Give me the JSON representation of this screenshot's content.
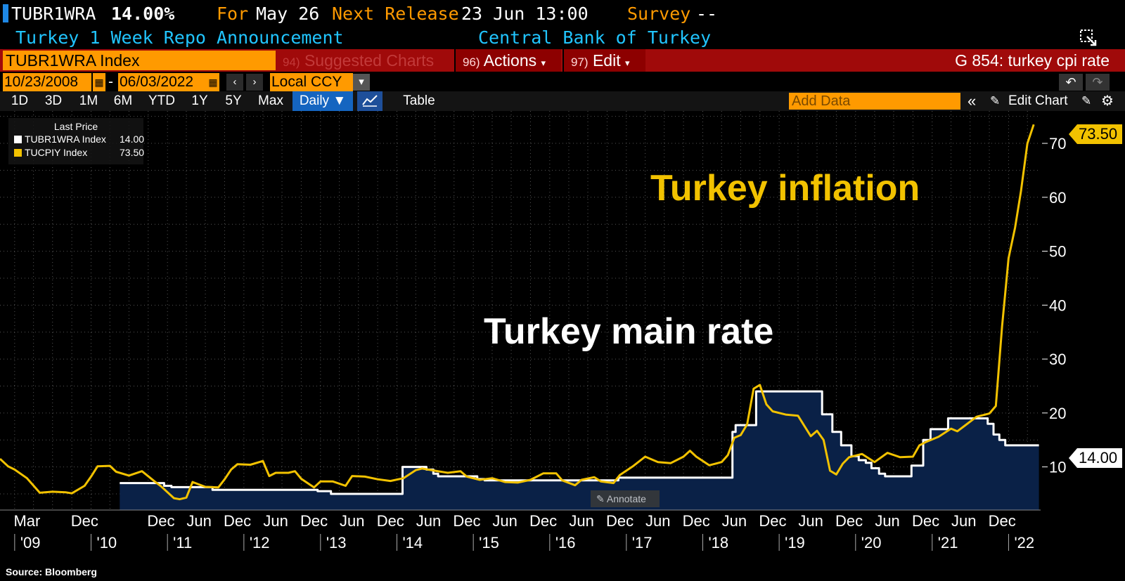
{
  "header": {
    "ticker": "TUBR1WRA",
    "value": "14.00%",
    "for_label": "For",
    "for_date": "May 26",
    "next_release_label": "Next Release",
    "next_release_value": "23 Jun 13:00",
    "survey_label": "Survey",
    "survey_value": "--",
    "description": "Turkey 1 Week Repo Announcement",
    "source_org": "Central Bank of Turkey"
  },
  "command_bar": {
    "security": "TUBR1WRA Index",
    "suggested_num": "94)",
    "suggested_label": "Suggested Charts",
    "actions_num": "96)",
    "actions_label": "Actions",
    "edit_num": "97)",
    "edit_label": "Edit",
    "page_title": "G 854: turkey cpi rate"
  },
  "date_range": {
    "start": "10/23/2008",
    "separator": "-",
    "end": "06/03/2022",
    "currency": "Local CCY"
  },
  "toolbar": {
    "ranges": [
      "1D",
      "3D",
      "1M",
      "6M",
      "YTD",
      "1Y",
      "5Y",
      "Max"
    ],
    "frequency": "Daily",
    "table_label": "Table",
    "add_data_placeholder": "Add Data",
    "edit_chart_label": "Edit Chart"
  },
  "legend": {
    "title": "Last Price",
    "items": [
      {
        "label": "TUBR1WRA Index",
        "value": "14.00",
        "color": "#ffffff"
      },
      {
        "label": "TUCPIY Index",
        "value": "73.50",
        "color": "#f2c200"
      }
    ]
  },
  "annotations": {
    "inflation": "Turkey inflation",
    "rate": "Turkey main rate",
    "annotate_button": "Annotate"
  },
  "last_tags": {
    "cpi": "73.50",
    "rate": "14.00"
  },
  "source": "Source: Bloomberg",
  "chart_data": {
    "type": "line",
    "title": "",
    "xlabel": "",
    "ylabel": "",
    "ylim": [
      2,
      76
    ],
    "xlim": [
      "2008-10-23",
      "2022-06-03"
    ],
    "grid": true,
    "legend_position": "top-left",
    "y_ticks": [
      10,
      20,
      30,
      40,
      50,
      60,
      70
    ],
    "x_month_ticks": [
      {
        "label": "Mar",
        "date": "2009-03-01"
      },
      {
        "label": "Dec",
        "date": "2009-12-01"
      },
      {
        "label": "Dec",
        "date": "2010-12-01"
      },
      {
        "label": "Jun",
        "date": "2011-06-01"
      },
      {
        "label": "Dec",
        "date": "2011-12-01"
      },
      {
        "label": "Jun",
        "date": "2012-06-01"
      },
      {
        "label": "Dec",
        "date": "2012-12-01"
      },
      {
        "label": "Jun",
        "date": "2013-06-01"
      },
      {
        "label": "Dec",
        "date": "2013-12-01"
      },
      {
        "label": "Jun",
        "date": "2014-06-01"
      },
      {
        "label": "Dec",
        "date": "2014-12-01"
      },
      {
        "label": "Jun",
        "date": "2015-06-01"
      },
      {
        "label": "Dec",
        "date": "2015-12-01"
      },
      {
        "label": "Jun",
        "date": "2016-06-01"
      },
      {
        "label": "Dec",
        "date": "2016-12-01"
      },
      {
        "label": "Jun",
        "date": "2017-06-01"
      },
      {
        "label": "Dec",
        "date": "2017-12-01"
      },
      {
        "label": "Jun",
        "date": "2018-06-01"
      },
      {
        "label": "Dec",
        "date": "2018-12-01"
      },
      {
        "label": "Jun",
        "date": "2019-06-01"
      },
      {
        "label": "Dec",
        "date": "2019-12-01"
      },
      {
        "label": "Jun",
        "date": "2020-06-01"
      },
      {
        "label": "Dec",
        "date": "2020-12-01"
      },
      {
        "label": "Jun",
        "date": "2021-06-01"
      },
      {
        "label": "Dec",
        "date": "2021-12-01"
      }
    ],
    "x_year_ticks": [
      {
        "label": "'09",
        "date": "2009-01-01"
      },
      {
        "label": "'10",
        "date": "2010-01-01"
      },
      {
        "label": "'11",
        "date": "2011-01-01"
      },
      {
        "label": "'12",
        "date": "2012-01-01"
      },
      {
        "label": "'13",
        "date": "2013-01-01"
      },
      {
        "label": "'14",
        "date": "2014-01-01"
      },
      {
        "label": "'15",
        "date": "2015-01-01"
      },
      {
        "label": "'16",
        "date": "2016-01-01"
      },
      {
        "label": "'17",
        "date": "2017-01-01"
      },
      {
        "label": "'18",
        "date": "2018-01-01"
      },
      {
        "label": "'19",
        "date": "2019-01-01"
      },
      {
        "label": "'20",
        "date": "2020-01-01"
      },
      {
        "label": "'21",
        "date": "2021-01-01"
      },
      {
        "label": "'22",
        "date": "2022-01-01"
      }
    ],
    "series": [
      {
        "name": "TUBR1WRA Index",
        "color": "#ffffff",
        "fill": "#0a2147",
        "step": true,
        "points": [
          [
            "2010-05-18",
            7.0
          ],
          [
            "2010-09-23",
            7.0
          ],
          [
            "2010-12-16",
            6.5
          ],
          [
            "2011-01-20",
            6.25
          ],
          [
            "2011-08-04",
            5.75
          ],
          [
            "2012-12-18",
            5.5
          ],
          [
            "2013-02-20",
            5.0
          ],
          [
            "2014-01-28",
            10.0
          ],
          [
            "2014-05-22",
            9.5
          ],
          [
            "2014-06-24",
            8.75
          ],
          [
            "2014-07-17",
            8.25
          ],
          [
            "2015-01-20",
            7.75
          ],
          [
            "2015-02-24",
            7.5
          ],
          [
            "2016-11-24",
            8.0
          ],
          [
            "2018-05-23",
            16.5
          ],
          [
            "2018-06-07",
            17.75
          ],
          [
            "2018-09-13",
            24.0
          ],
          [
            "2019-07-25",
            19.75
          ],
          [
            "2019-09-12",
            16.5
          ],
          [
            "2019-10-24",
            14.0
          ],
          [
            "2019-12-12",
            12.0
          ],
          [
            "2020-01-16",
            11.25
          ],
          [
            "2020-02-19",
            10.75
          ],
          [
            "2020-03-17",
            9.75
          ],
          [
            "2020-04-22",
            8.75
          ],
          [
            "2020-05-21",
            8.25
          ],
          [
            "2020-09-24",
            10.25
          ],
          [
            "2020-11-19",
            15.0
          ],
          [
            "2020-12-24",
            17.0
          ],
          [
            "2021-03-18",
            19.0
          ],
          [
            "2021-09-23",
            18.0
          ],
          [
            "2021-10-21",
            16.0
          ],
          [
            "2021-11-18",
            15.0
          ],
          [
            "2021-12-16",
            14.0
          ],
          [
            "2022-05-26",
            14.0
          ]
        ]
      },
      {
        "name": "TUCPIY Index",
        "color": "#f2c200",
        "step": false,
        "points": [
          [
            "2008-10-23",
            11.5
          ],
          [
            "2008-12-01",
            10.1
          ],
          [
            "2009-01-01",
            9.5
          ],
          [
            "2009-03-01",
            7.9
          ],
          [
            "2009-05-01",
            5.2
          ],
          [
            "2009-07-01",
            5.4
          ],
          [
            "2009-09-01",
            5.3
          ],
          [
            "2009-10-01",
            5.1
          ],
          [
            "2009-12-01",
            6.5
          ],
          [
            "2010-01-01",
            8.2
          ],
          [
            "2010-02-01",
            10.1
          ],
          [
            "2010-04-01",
            10.2
          ],
          [
            "2010-05-01",
            9.1
          ],
          [
            "2010-07-01",
            8.4
          ],
          [
            "2010-09-01",
            9.2
          ],
          [
            "2010-11-01",
            7.3
          ],
          [
            "2010-12-01",
            6.4
          ],
          [
            "2011-02-01",
            4.2
          ],
          [
            "2011-03-01",
            4.0
          ],
          [
            "2011-04-01",
            4.3
          ],
          [
            "2011-05-01",
            7.2
          ],
          [
            "2011-07-01",
            6.3
          ],
          [
            "2011-09-01",
            6.2
          ],
          [
            "2011-10-01",
            7.7
          ],
          [
            "2011-11-01",
            9.5
          ],
          [
            "2011-12-01",
            10.5
          ],
          [
            "2012-02-01",
            10.4
          ],
          [
            "2012-04-01",
            11.1
          ],
          [
            "2012-05-01",
            8.3
          ],
          [
            "2012-06-01",
            8.9
          ],
          [
            "2012-08-01",
            8.9
          ],
          [
            "2012-09-01",
            9.2
          ],
          [
            "2012-10-01",
            7.8
          ],
          [
            "2012-12-01",
            6.2
          ],
          [
            "2013-01-01",
            7.3
          ],
          [
            "2013-03-01",
            7.3
          ],
          [
            "2013-05-01",
            6.5
          ],
          [
            "2013-06-01",
            8.3
          ],
          [
            "2013-08-01",
            8.2
          ],
          [
            "2013-10-01",
            7.7
          ],
          [
            "2013-12-01",
            7.4
          ],
          [
            "2014-02-01",
            7.9
          ],
          [
            "2014-04-01",
            9.4
          ],
          [
            "2014-05-01",
            9.7
          ],
          [
            "2014-07-01",
            9.3
          ],
          [
            "2014-09-01",
            8.9
          ],
          [
            "2014-11-01",
            9.2
          ],
          [
            "2014-12-01",
            8.2
          ],
          [
            "2015-02-01",
            7.6
          ],
          [
            "2015-04-01",
            7.9
          ],
          [
            "2015-06-01",
            7.2
          ],
          [
            "2015-08-01",
            7.1
          ],
          [
            "2015-10-01",
            7.6
          ],
          [
            "2015-12-01",
            8.8
          ],
          [
            "2016-02-01",
            8.8
          ],
          [
            "2016-03-01",
            7.5
          ],
          [
            "2016-05-01",
            6.6
          ],
          [
            "2016-06-01",
            7.6
          ],
          [
            "2016-08-01",
            8.1
          ],
          [
            "2016-09-01",
            7.3
          ],
          [
            "2016-11-01",
            7.0
          ],
          [
            "2016-12-01",
            8.5
          ],
          [
            "2017-02-01",
            10.1
          ],
          [
            "2017-04-01",
            11.9
          ],
          [
            "2017-06-01",
            10.9
          ],
          [
            "2017-08-01",
            10.7
          ],
          [
            "2017-10-01",
            11.9
          ],
          [
            "2017-11-01",
            13.0
          ],
          [
            "2017-12-01",
            11.9
          ],
          [
            "2018-02-01",
            10.3
          ],
          [
            "2018-04-01",
            10.9
          ],
          [
            "2018-05-01",
            12.2
          ],
          [
            "2018-06-01",
            15.4
          ],
          [
            "2018-07-01",
            15.9
          ],
          [
            "2018-08-01",
            17.9
          ],
          [
            "2018-09-01",
            24.5
          ],
          [
            "2018-10-01",
            25.2
          ],
          [
            "2018-11-01",
            21.6
          ],
          [
            "2018-12-01",
            20.3
          ],
          [
            "2019-02-01",
            19.7
          ],
          [
            "2019-04-01",
            19.5
          ],
          [
            "2019-06-01",
            15.7
          ],
          [
            "2019-07-01",
            16.7
          ],
          [
            "2019-08-01",
            15.0
          ],
          [
            "2019-09-01",
            9.3
          ],
          [
            "2019-10-01",
            8.6
          ],
          [
            "2019-11-01",
            10.6
          ],
          [
            "2019-12-01",
            11.8
          ],
          [
            "2020-02-01",
            12.4
          ],
          [
            "2020-04-01",
            10.9
          ],
          [
            "2020-06-01",
            12.6
          ],
          [
            "2020-08-01",
            11.8
          ],
          [
            "2020-10-01",
            11.9
          ],
          [
            "2020-11-01",
            14.0
          ],
          [
            "2020-12-01",
            14.6
          ],
          [
            "2021-02-01",
            15.6
          ],
          [
            "2021-04-01",
            17.1
          ],
          [
            "2021-05-01",
            16.6
          ],
          [
            "2021-06-01",
            17.5
          ],
          [
            "2021-08-01",
            19.3
          ],
          [
            "2021-10-01",
            19.9
          ],
          [
            "2021-11-01",
            21.3
          ],
          [
            "2021-12-01",
            36.1
          ],
          [
            "2022-01-01",
            48.7
          ],
          [
            "2022-02-01",
            54.4
          ],
          [
            "2022-03-01",
            61.1
          ],
          [
            "2022-04-01",
            70.0
          ],
          [
            "2022-05-01",
            73.5
          ]
        ]
      }
    ]
  }
}
